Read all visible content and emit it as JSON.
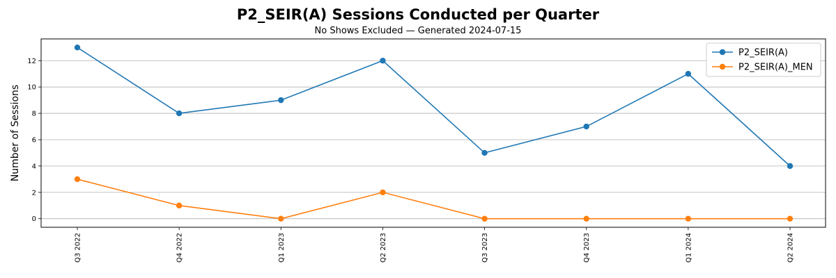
{
  "chart_data": {
    "type": "line",
    "title": "P2_SEIR(A) Sessions Conducted per Quarter",
    "subtitle": "No Shows Excluded — Generated 2024-07-15",
    "xlabel": "",
    "ylabel": "Number of Sessions",
    "categories": [
      "Q3 2022",
      "Q4 2022",
      "Q1 2023",
      "Q2 2023",
      "Q3 2023",
      "Q4 2023",
      "Q1 2024",
      "Q2 2024"
    ],
    "series": [
      {
        "name": "P2_SEIR(A)",
        "color": "#1f77b4",
        "values": [
          13,
          8,
          9,
          12,
          5,
          7,
          11,
          4
        ]
      },
      {
        "name": "P2_SEIR(A)_MEN",
        "color": "#ff7f0e",
        "values": [
          3,
          1,
          0,
          2,
          0,
          0,
          0,
          0
        ]
      }
    ],
    "ylim": [
      -0.65,
      13.65
    ],
    "yticks": [
      0,
      2,
      4,
      6,
      8,
      10,
      12
    ],
    "grid": "y",
    "legend_position": "top-right"
  }
}
